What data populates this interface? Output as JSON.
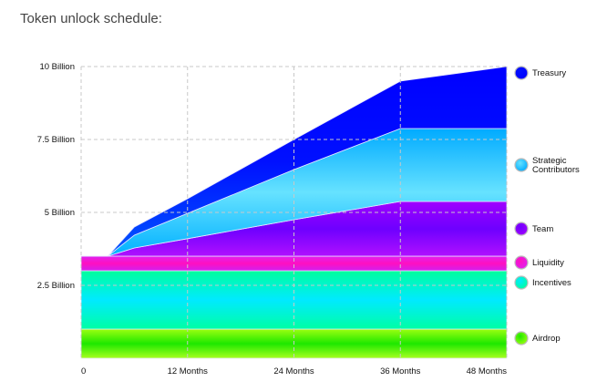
{
  "title": "Token unlock schedule:",
  "chart_data": {
    "type": "area",
    "stacked": true,
    "title": "Token unlock schedule:",
    "xlabel": "",
    "ylabel": "",
    "x": [
      0,
      3,
      6,
      12,
      24,
      36,
      48
    ],
    "x_ticks": [
      {
        "value": 0,
        "label": "0"
      },
      {
        "value": 12,
        "label": "12 Months"
      },
      {
        "value": 24,
        "label": "24 Months"
      },
      {
        "value": 36,
        "label": "36 Months"
      },
      {
        "value": 48,
        "label": "48 Months"
      }
    ],
    "y_ticks": [
      {
        "value": 2.5,
        "label": "2.5 Billion"
      },
      {
        "value": 5,
        "label": "5 Billion"
      },
      {
        "value": 7.5,
        "label": "7.5 Billion"
      },
      {
        "value": 10,
        "label": "10 Billion"
      }
    ],
    "xlim": [
      0,
      48
    ],
    "ylim": [
      0,
      10
    ],
    "y_unit": "Billion tokens",
    "grid": true,
    "legend_placement": "right",
    "series": [
      {
        "name": "Airdrop",
        "values": [
          1,
          1,
          1,
          1,
          1,
          1,
          1
        ],
        "colors": [
          "#9cff10",
          "#1ee800",
          "#a8ff20"
        ]
      },
      {
        "name": "Incentives",
        "values": [
          2,
          2,
          2,
          2,
          2,
          2,
          2
        ],
        "colors": [
          "#00ff9c",
          "#00eaff",
          "#00ffa4"
        ]
      },
      {
        "name": "Liquidity",
        "values": [
          0.5,
          0.5,
          0.5,
          0.5,
          0.5,
          0.5,
          0.5
        ],
        "colors": [
          "#e020f0",
          "#ff10c0",
          "#d020f0"
        ]
      },
      {
        "name": "Team",
        "values": [
          0,
          0,
          0.28,
          0.6,
          1.25,
          1.875,
          1.875
        ],
        "colors": [
          "#a000ff",
          "#6e00ff",
          "#b010ff"
        ]
      },
      {
        "name": "Strategic Contributors",
        "values": [
          0,
          0,
          0.44,
          0.87,
          1.72,
          2.5,
          2.5
        ],
        "colors": [
          "#00aaff",
          "#66e2ff",
          "#00b0ff"
        ]
      },
      {
        "name": "Treasury",
        "values": [
          0,
          0,
          0.28,
          0.5,
          1.03,
          1.625,
          2.125
        ],
        "colors": [
          "#0000ff",
          "#0010ff",
          "#0058ff"
        ]
      }
    ]
  }
}
